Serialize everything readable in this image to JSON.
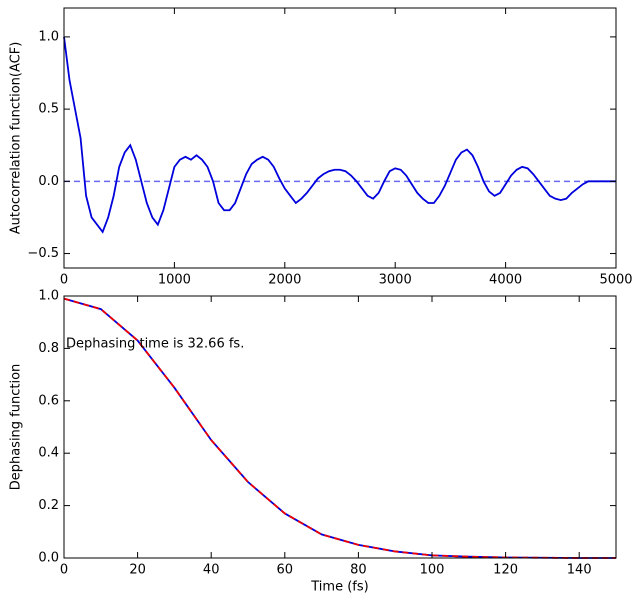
{
  "chart_data": [
    {
      "type": "line",
      "ylabel": "Autocorrelation function(ACF)",
      "x": [
        0,
        50,
        100,
        150,
        200,
        250,
        300,
        350,
        400,
        450,
        500,
        550,
        600,
        650,
        700,
        750,
        800,
        850,
        900,
        950,
        1000,
        1050,
        1100,
        1150,
        1200,
        1250,
        1300,
        1350,
        1400,
        1450,
        1500,
        1550,
        1600,
        1650,
        1700,
        1750,
        1800,
        1850,
        1900,
        1950,
        2000,
        2050,
        2100,
        2150,
        2200,
        2250,
        2300,
        2350,
        2400,
        2450,
        2500,
        2550,
        2600,
        2650,
        2700,
        2750,
        2800,
        2850,
        2900,
        2950,
        3000,
        3050,
        3100,
        3150,
        3200,
        3250,
        3300,
        3350,
        3400,
        3450,
        3500,
        3550,
        3600,
        3650,
        3700,
        3750,
        3800,
        3850,
        3900,
        3950,
        4000,
        4050,
        4100,
        4150,
        4200,
        4250,
        4300,
        4350,
        4400,
        4450,
        4500,
        4550,
        4600,
        4650,
        4700,
        4750,
        4800,
        4850,
        4900,
        4950,
        5000
      ],
      "series": [
        {
          "color": "#0000dd",
          "values": [
            1.0,
            0.7,
            0.5,
            0.3,
            -0.1,
            -0.25,
            -0.3,
            -0.35,
            -0.25,
            -0.1,
            0.1,
            0.2,
            0.25,
            0.15,
            0.0,
            -0.15,
            -0.25,
            -0.3,
            -0.2,
            -0.05,
            0.1,
            0.15,
            0.17,
            0.15,
            0.18,
            0.15,
            0.1,
            0.0,
            -0.15,
            -0.2,
            -0.2,
            -0.15,
            -0.05,
            0.05,
            0.12,
            0.15,
            0.17,
            0.15,
            0.1,
            0.02,
            -0.05,
            -0.1,
            -0.15,
            -0.12,
            -0.08,
            -0.03,
            0.02,
            0.05,
            0.07,
            0.08,
            0.08,
            0.07,
            0.04,
            0.0,
            -0.05,
            -0.1,
            -0.12,
            -0.08,
            0.0,
            0.07,
            0.09,
            0.08,
            0.04,
            -0.02,
            -0.08,
            -0.12,
            -0.15,
            -0.15,
            -0.1,
            -0.03,
            0.06,
            0.15,
            0.2,
            0.22,
            0.18,
            0.1,
            0.0,
            -0.07,
            -0.1,
            -0.08,
            -0.02,
            0.04,
            0.08,
            0.1,
            0.09,
            0.05,
            0.0,
            -0.05,
            -0.1,
            -0.12,
            -0.13,
            -0.12,
            -0.08,
            -0.05,
            -0.02,
            0.0,
            0.0,
            0.0,
            0.0,
            0.0,
            0.0
          ]
        }
      ],
      "reference_line": {
        "value": 0,
        "color": "#6a6af0",
        "dashed": true
      },
      "xlim": [
        0,
        5000
      ],
      "xticks": [
        0,
        1000,
        2000,
        3000,
        4000,
        5000
      ],
      "ylim": [
        -0.6,
        1.2
      ],
      "yticks": [
        {
          "value": -0.5,
          "label": "−0.5"
        },
        {
          "value": 0,
          "label": "0.0"
        },
        {
          "value": 0.5,
          "label": "0.5"
        },
        {
          "value": 1,
          "label": "1.0"
        }
      ]
    },
    {
      "type": "line",
      "xlabel": "Time (fs)",
      "ylabel": "Dephasing function",
      "annotation": "Dephasing time is 32.66 fs.",
      "x": [
        0,
        10,
        20,
        30,
        40,
        50,
        60,
        70,
        80,
        90,
        100,
        110,
        120,
        130,
        140,
        150
      ],
      "series": [
        {
          "color": "#0000dd",
          "values": [
            0.99,
            0.95,
            0.83,
            0.65,
            0.45,
            0.29,
            0.17,
            0.09,
            0.05,
            0.025,
            0.01,
            0.005,
            0.002,
            0.001,
            0,
            0
          ]
        },
        {
          "color": "#ee0000",
          "dashed": true,
          "values": [
            0.99,
            0.95,
            0.83,
            0.65,
            0.45,
            0.29,
            0.17,
            0.09,
            0.05,
            0.025,
            0.01,
            0.005,
            0.002,
            0.001,
            0,
            0
          ]
        }
      ],
      "xlim": [
        0,
        150
      ],
      "xticks": [
        0,
        20,
        40,
        60,
        80,
        100,
        120,
        140
      ],
      "ylim": [
        0,
        1
      ],
      "yticks": [
        {
          "value": 0,
          "label": "0.0"
        },
        {
          "value": 0.2,
          "label": "0.2"
        },
        {
          "value": 0.4,
          "label": "0.4"
        },
        {
          "value": 0.6,
          "label": "0.6"
        },
        {
          "value": 0.8,
          "label": "0.8"
        },
        {
          "value": 1,
          "label": "1.0"
        }
      ]
    }
  ]
}
